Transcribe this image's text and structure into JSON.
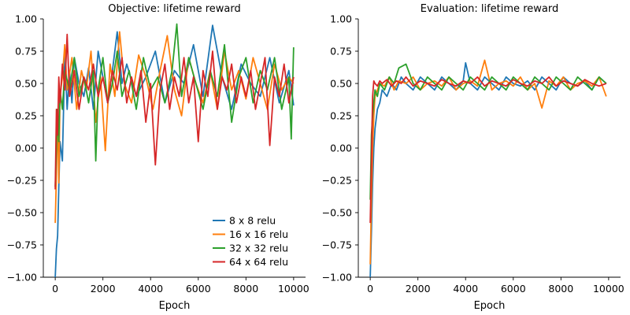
{
  "chart_data": [
    {
      "type": "line",
      "title": "Objective: lifetime reward",
      "xlabel": "Epoch",
      "ylabel": "",
      "xlim": [
        -500,
        10500
      ],
      "ylim": [
        -1.0,
        1.0
      ],
      "xticks": [
        "0",
        "2000",
        "4000",
        "6000",
        "8000",
        "10000"
      ],
      "yticks": [
        "−1.00",
        "−0.75",
        "−0.50",
        "−0.25",
        "0.00",
        "0.25",
        "0.50",
        "0.75",
        "1.00"
      ],
      "legend": "lower-right",
      "grid": false,
      "series": [
        {
          "name": "8 x 8 relu",
          "color": "#1f77b4",
          "x": [
            0,
            50,
            100,
            150,
            200,
            300,
            400,
            500,
            600,
            700,
            800,
            1000,
            1200,
            1400,
            1600,
            1800,
            2000,
            2200,
            2400,
            2600,
            2800,
            3000,
            3400,
            3800,
            4200,
            4600,
            5000,
            5400,
            5800,
            6200,
            6600,
            7000,
            7400,
            7800,
            8200,
            8600,
            9000,
            9400,
            9800,
            10000
          ],
          "y": [
            -1.0,
            -0.78,
            -0.68,
            -0.3,
            0.05,
            -0.1,
            0.72,
            0.3,
            0.6,
            0.35,
            0.7,
            0.5,
            0.4,
            0.62,
            0.3,
            0.75,
            0.55,
            0.35,
            0.6,
            0.9,
            0.5,
            0.65,
            0.4,
            0.55,
            0.75,
            0.35,
            0.6,
            0.5,
            0.8,
            0.4,
            0.95,
            0.55,
            0.3,
            0.65,
            0.5,
            0.4,
            0.7,
            0.35,
            0.6,
            0.33
          ]
        },
        {
          "name": "16 x 16 relu",
          "color": "#ff7f0e",
          "x": [
            0,
            50,
            100,
            150,
            200,
            300,
            400,
            500,
            700,
            900,
            1100,
            1300,
            1500,
            1700,
            1900,
            2100,
            2300,
            2500,
            2700,
            2900,
            3200,
            3500,
            3800,
            4100,
            4400,
            4700,
            5000,
            5300,
            5600,
            5900,
            6200,
            6500,
            6800,
            7100,
            7400,
            7700,
            8000,
            8300,
            8600,
            8900,
            9200,
            9500,
            9800,
            10000
          ],
          "y": [
            -0.58,
            -0.2,
            0.3,
            -0.27,
            0.4,
            0.55,
            0.8,
            0.45,
            0.7,
            0.3,
            0.6,
            0.45,
            0.75,
            0.2,
            0.55,
            -0.02,
            0.65,
            0.4,
            0.9,
            0.5,
            0.35,
            0.72,
            0.55,
            0.3,
            0.6,
            0.87,
            0.45,
            0.25,
            0.7,
            0.5,
            0.35,
            0.6,
            0.3,
            0.75,
            0.45,
            0.6,
            0.38,
            0.7,
            0.5,
            0.3,
            0.65,
            0.45,
            0.55,
            0.5
          ]
        },
        {
          "name": "32 x 32 relu",
          "color": "#2ca02c",
          "x": [
            0,
            50,
            100,
            150,
            200,
            300,
            400,
            600,
            800,
            1000,
            1200,
            1400,
            1600,
            1700,
            1800,
            2000,
            2200,
            2400,
            2600,
            2800,
            3100,
            3400,
            3700,
            4000,
            4300,
            4600,
            4900,
            5100,
            5300,
            5600,
            5900,
            6200,
            6500,
            6800,
            7100,
            7400,
            7700,
            8000,
            8300,
            8600,
            8900,
            9200,
            9500,
            9800,
            9900,
            10000
          ],
          "y": [
            -0.3,
            0.0,
            0.3,
            0.05,
            0.45,
            0.3,
            0.6,
            0.45,
            0.7,
            0.4,
            0.55,
            0.35,
            0.6,
            -0.1,
            0.45,
            0.7,
            0.35,
            0.5,
            0.75,
            0.4,
            0.6,
            0.3,
            0.7,
            0.45,
            0.55,
            0.35,
            0.6,
            0.96,
            0.4,
            0.7,
            0.5,
            0.3,
            0.6,
            0.4,
            0.8,
            0.2,
            0.55,
            0.7,
            0.35,
            0.6,
            0.45,
            0.7,
            0.3,
            0.55,
            0.07,
            0.78
          ]
        },
        {
          "name": "64 x 64 relu",
          "color": "#d62728",
          "x": [
            0,
            50,
            100,
            150,
            200,
            300,
            400,
            500,
            600,
            800,
            1000,
            1200,
            1400,
            1600,
            1800,
            2000,
            2200,
            2400,
            2600,
            2800,
            3000,
            3200,
            3400,
            3600,
            3800,
            4000,
            4200,
            4400,
            4600,
            4800,
            5000,
            5200,
            5400,
            5600,
            5800,
            6000,
            6200,
            6400,
            6600,
            6800,
            7000,
            7200,
            7400,
            7600,
            7800,
            8000,
            8200,
            8400,
            8600,
            8800,
            9000,
            9200,
            9400,
            9600,
            9800,
            10000
          ],
          "y": [
            -0.32,
            0.3,
            0.1,
            0.55,
            0.35,
            0.65,
            0.45,
            0.88,
            0.4,
            0.6,
            0.3,
            0.55,
            0.45,
            0.65,
            0.4,
            0.55,
            0.35,
            0.6,
            0.45,
            0.7,
            0.35,
            0.55,
            0.4,
            0.6,
            0.2,
            0.5,
            -0.13,
            0.45,
            0.65,
            0.3,
            0.55,
            0.4,
            0.7,
            0.35,
            0.55,
            0.05,
            0.6,
            0.4,
            0.75,
            0.3,
            0.55,
            0.45,
            0.65,
            0.35,
            0.55,
            0.4,
            0.6,
            0.3,
            0.5,
            0.7,
            0.02,
            0.55,
            0.4,
            0.65,
            0.35,
            0.55
          ]
        }
      ]
    },
    {
      "type": "line",
      "title": "Evaluation: lifetime reward",
      "xlabel": "Epoch",
      "ylabel": "",
      "xlim": [
        -500,
        10500
      ],
      "ylim": [
        -1.0,
        1.0
      ],
      "xticks": [
        "0",
        "2000",
        "4000",
        "6000",
        "8000",
        "10000"
      ],
      "yticks": [
        "−1.00",
        "−0.75",
        "−0.50",
        "−0.25",
        "0.00",
        "0.25",
        "0.50",
        "0.75",
        "1.00"
      ],
      "legend": "none",
      "grid": false,
      "series": [
        {
          "name": "8 x 8 relu",
          "color": "#1f77b4",
          "x": [
            0,
            50,
            100,
            150,
            200,
            300,
            400,
            500,
            700,
            900,
            1100,
            1300,
            1500,
            1800,
            2100,
            2400,
            2700,
            3000,
            3300,
            3600,
            3900,
            4000,
            4200,
            4500,
            4800,
            5100,
            5400,
            5700,
            6000,
            6300,
            6600,
            6900,
            7200,
            7500,
            7800,
            8100,
            8400,
            8700,
            9000,
            9300,
            9600,
            9900
          ],
          "y": [
            -1.0,
            -0.65,
            -0.27,
            0.0,
            0.15,
            0.3,
            0.35,
            0.45,
            0.4,
            0.5,
            0.45,
            0.55,
            0.5,
            0.45,
            0.55,
            0.5,
            0.45,
            0.55,
            0.5,
            0.45,
            0.52,
            0.66,
            0.5,
            0.45,
            0.55,
            0.5,
            0.45,
            0.55,
            0.5,
            0.48,
            0.52,
            0.45,
            0.55,
            0.5,
            0.45,
            0.55,
            0.5,
            0.48,
            0.52,
            0.45,
            0.55,
            0.5
          ]
        },
        {
          "name": "16 x 16 relu",
          "color": "#ff7f0e",
          "x": [
            0,
            50,
            100,
            150,
            200,
            300,
            400,
            600,
            800,
            1000,
            1200,
            1500,
            1800,
            2100,
            2400,
            2700,
            3000,
            3300,
            3600,
            3900,
            4200,
            4500,
            4800,
            5100,
            5400,
            5700,
            6000,
            6300,
            6600,
            6900,
            7200,
            7500,
            7800,
            8100,
            8400,
            8700,
            9000,
            9300,
            9600,
            9900
          ],
          "y": [
            -0.9,
            -0.4,
            0.0,
            0.25,
            0.4,
            0.45,
            0.5,
            0.48,
            0.55,
            0.45,
            0.52,
            0.5,
            0.55,
            0.45,
            0.5,
            0.52,
            0.48,
            0.55,
            0.45,
            0.5,
            0.52,
            0.48,
            0.68,
            0.45,
            0.5,
            0.52,
            0.48,
            0.55,
            0.45,
            0.5,
            0.31,
            0.52,
            0.48,
            0.55,
            0.45,
            0.5,
            0.52,
            0.48,
            0.55,
            0.4
          ]
        },
        {
          "name": "32 x 32 relu",
          "color": "#2ca02c",
          "x": [
            0,
            50,
            100,
            150,
            200,
            300,
            400,
            600,
            800,
            1000,
            1200,
            1500,
            1800,
            2100,
            2400,
            2700,
            3000,
            3300,
            3600,
            3900,
            4200,
            4500,
            4800,
            5100,
            5400,
            5700,
            6000,
            6300,
            6600,
            6900,
            7200,
            7500,
            7800,
            8100,
            8400,
            8700,
            9000,
            9300,
            9600,
            9900
          ],
          "y": [
            -0.4,
            0.1,
            0.25,
            0.35,
            0.45,
            0.4,
            0.5,
            0.45,
            0.55,
            0.5,
            0.62,
            0.65,
            0.5,
            0.45,
            0.55,
            0.5,
            0.45,
            0.55,
            0.5,
            0.45,
            0.55,
            0.5,
            0.45,
            0.55,
            0.5,
            0.45,
            0.55,
            0.5,
            0.45,
            0.55,
            0.5,
            0.45,
            0.55,
            0.5,
            0.45,
            0.55,
            0.5,
            0.45,
            0.55,
            0.5
          ]
        },
        {
          "name": "64 x 64 relu",
          "color": "#d62728",
          "x": [
            0,
            50,
            100,
            150,
            200,
            300,
            400,
            500,
            700,
            900,
            1100,
            1300,
            1500,
            1800,
            2100,
            2400,
            2700,
            3000,
            3300,
            3600,
            3900,
            4200,
            4500,
            4800,
            5100,
            5400,
            5700,
            6000,
            6300,
            6600,
            6900,
            7200,
            7500,
            7800,
            8100,
            8400,
            8700,
            9000,
            9300,
            9600,
            9900
          ],
          "y": [
            -0.58,
            -0.1,
            0.4,
            0.52,
            0.5,
            0.48,
            0.52,
            0.5,
            0.53,
            0.48,
            0.52,
            0.5,
            0.55,
            0.48,
            0.52,
            0.5,
            0.48,
            0.53,
            0.5,
            0.48,
            0.52,
            0.5,
            0.55,
            0.48,
            0.52,
            0.5,
            0.48,
            0.53,
            0.5,
            0.48,
            0.52,
            0.5,
            0.55,
            0.48,
            0.52,
            0.5,
            0.48,
            0.53,
            0.5,
            0.48,
            0.5
          ]
        }
      ]
    }
  ]
}
